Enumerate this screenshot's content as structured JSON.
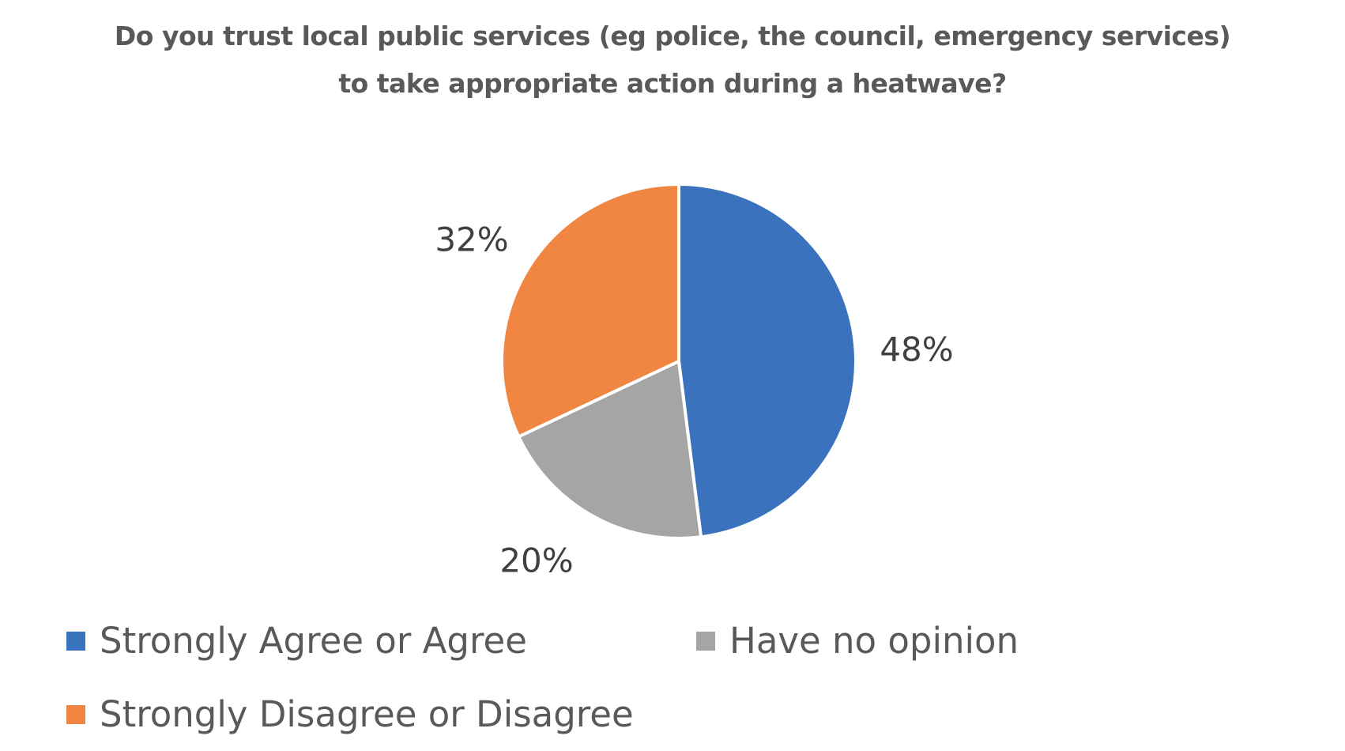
{
  "chart_data": {
    "type": "pie",
    "title_lines": [
      "Do you trust local public services (eg police, the council, emergency services)",
      "to take appropriate action during a heatwave?"
    ],
    "slices": [
      {
        "name": "Strongly Agree or Agree",
        "value": 48,
        "label": "48%",
        "color": "#3A72BE"
      },
      {
        "name": "Have no opinion",
        "value": 20,
        "label": "20%",
        "color": "#A5A5A5"
      },
      {
        "name": "Strongly Disagree or Disagree",
        "value": 32,
        "label": "32%",
        "color": "#F08641"
      }
    ],
    "start_angle": "top, clockwise",
    "legend_placement": "bottom"
  }
}
